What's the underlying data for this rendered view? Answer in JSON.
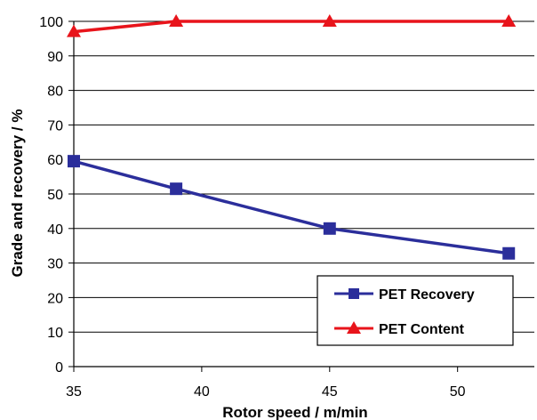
{
  "chart_data": {
    "type": "line",
    "x": [
      35,
      39,
      45,
      52
    ],
    "series": [
      {
        "name": "PET Recovery",
        "values": [
          59.5,
          51.5,
          40.0,
          32.8
        ],
        "color": "#2B2E9B",
        "marker": "square"
      },
      {
        "name": "PET Content",
        "values": [
          97.0,
          100.0,
          100.0,
          100.0
        ],
        "color": "#E8141B",
        "marker": "triangle"
      }
    ],
    "xlabel": "Rotor speed / m/min",
    "ylabel": "Grade and recovery / %",
    "xlim": [
      35,
      53
    ],
    "ylim": [
      0,
      100
    ],
    "xticks": [
      "35",
      "40",
      "45",
      "50"
    ],
    "yticks": [
      "0",
      "10",
      "20",
      "30",
      "40",
      "50",
      "60",
      "70",
      "80",
      "90",
      "100"
    ],
    "grid": "horizontal",
    "legend_position": "bottom-right"
  }
}
